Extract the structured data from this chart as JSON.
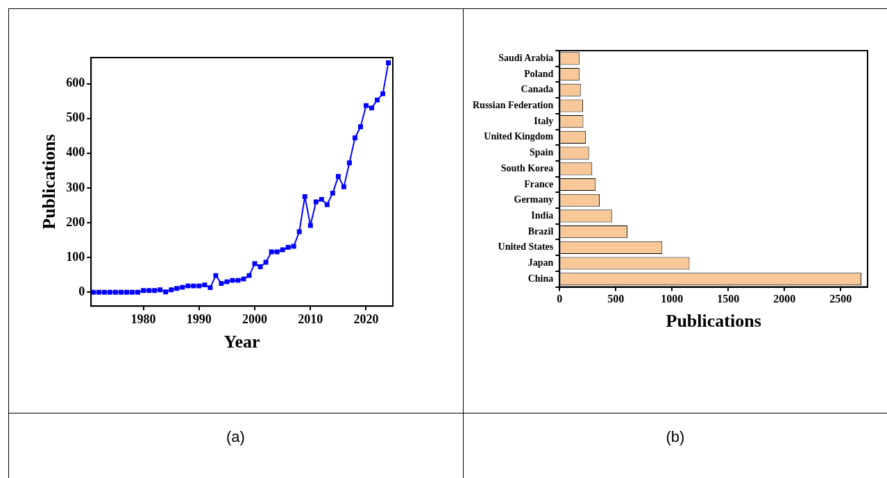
{
  "chart_data": [
    {
      "type": "line",
      "xlabel": "Year",
      "ylabel": "Publications",
      "color": "#0000ff",
      "marker": "square",
      "grid": false,
      "legend": false,
      "annotations": [
        "(a)"
      ],
      "x": [
        1971,
        1972,
        1973,
        1974,
        1975,
        1976,
        1977,
        1978,
        1979,
        1980,
        1981,
        1982,
        1983,
        1984,
        1985,
        1986,
        1987,
        1988,
        1989,
        1990,
        1991,
        1992,
        1993,
        1994,
        1995,
        1996,
        1997,
        1998,
        1999,
        2000,
        2001,
        2002,
        2003,
        2004,
        2005,
        2006,
        2007,
        2008,
        2009,
        2010,
        2011,
        2012,
        2013,
        2014,
        2015,
        2016,
        2017,
        2018,
        2019,
        2020,
        2021,
        2022,
        2023,
        2024
      ],
      "values": [
        0,
        0,
        0,
        0,
        0,
        0,
        0,
        0,
        0,
        5,
        5,
        5,
        7,
        1,
        7,
        11,
        14,
        18,
        18,
        18,
        21,
        13,
        48,
        25,
        30,
        34,
        34,
        38,
        48,
        82,
        73,
        86,
        116,
        116,
        122,
        129,
        132,
        174,
        275,
        192,
        260,
        267,
        252,
        285,
        333,
        303,
        372,
        444,
        476,
        537,
        530,
        553,
        571,
        660
      ],
      "xlim": [
        1970.6,
        2024.8
      ],
      "xticks": [
        1980,
        1990,
        2000,
        2010,
        2020
      ],
      "ylim": [
        -40,
        675
      ],
      "yticks": [
        0,
        100,
        200,
        300,
        400,
        500,
        600
      ]
    },
    {
      "type": "bar",
      "orientation": "horizontal",
      "xlabel": "Publications",
      "color": "#f9c898",
      "grid": false,
      "legend": false,
      "annotations": [
        "(b)"
      ],
      "categories": [
        "Saudi Arabia",
        "Poland",
        "Canada",
        "Russian Federation",
        "Italy",
        "United Kingdom",
        "Spain",
        "South Korea",
        "France",
        "Germany",
        "India",
        "Brazil",
        "United States",
        "Japan",
        "China"
      ],
      "values": [
        176,
        176,
        188,
        209,
        211,
        234,
        262,
        290,
        321,
        356,
        466,
        603,
        914,
        1156,
        2685
      ],
      "xlim": [
        0,
        2740
      ],
      "xticks": [
        0,
        500,
        1000,
        1500,
        2000,
        2500
      ]
    }
  ]
}
